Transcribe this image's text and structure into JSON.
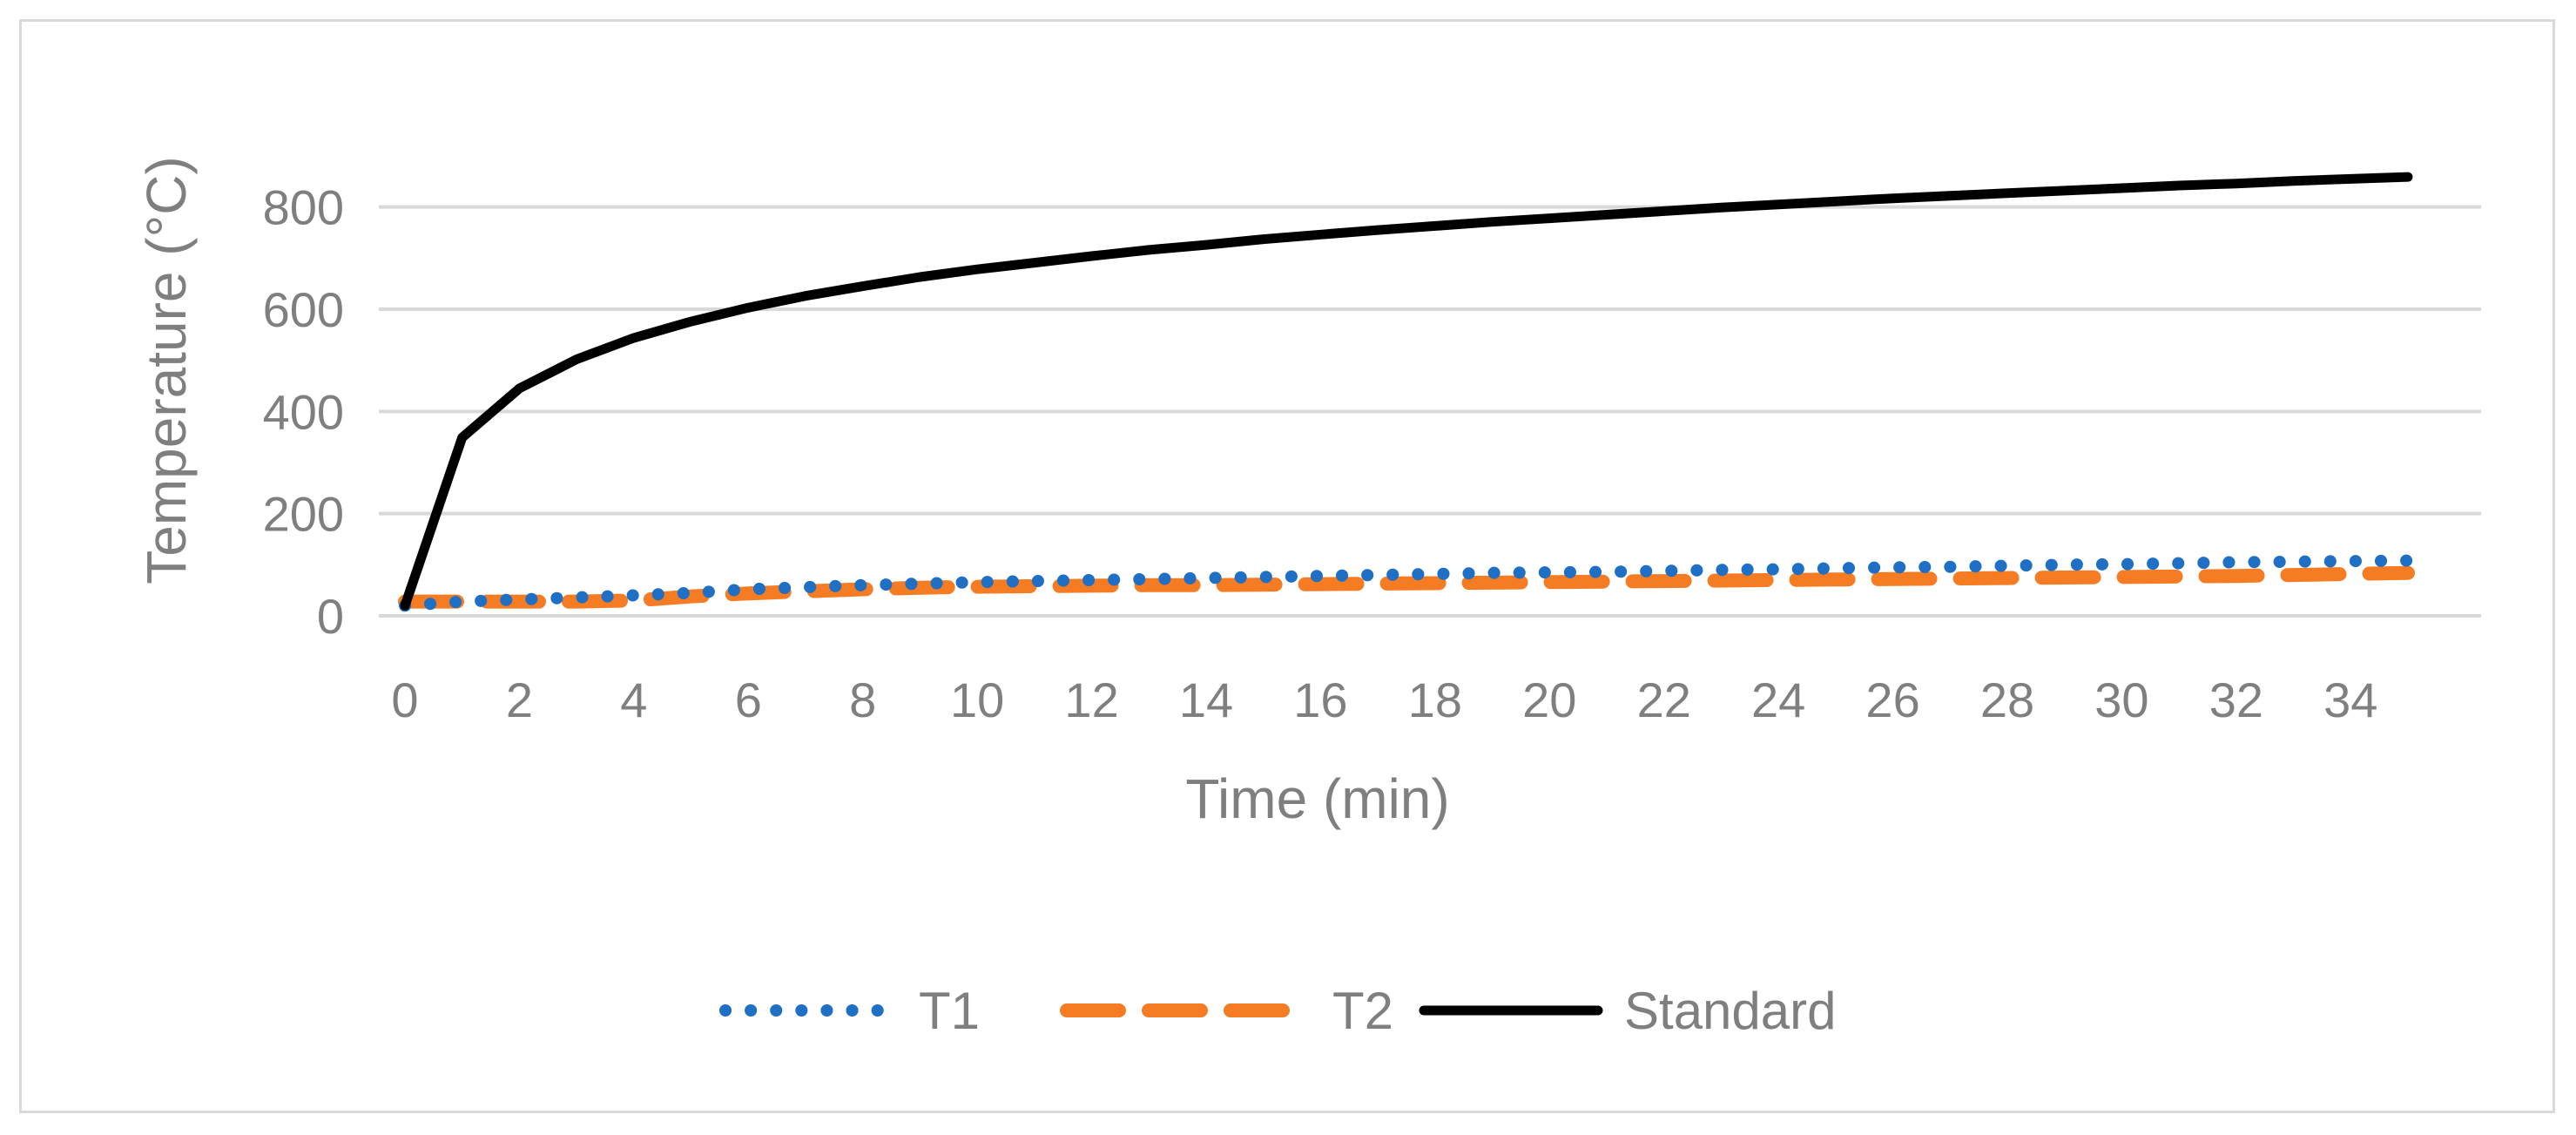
{
  "chart_data": {
    "type": "line",
    "title": "",
    "xlabel": "Time (min)",
    "ylabel": "Temperature (°C)",
    "xlim": [
      0,
      35
    ],
    "ylim": [
      0,
      900
    ],
    "x_ticks": [
      0,
      2,
      4,
      6,
      8,
      10,
      12,
      14,
      16,
      18,
      20,
      22,
      24,
      26,
      28,
      30,
      32,
      34
    ],
    "y_ticks": [
      0,
      200,
      400,
      600,
      800
    ],
    "grid": "horizontal",
    "legend_position": "bottom",
    "x": [
      0,
      1,
      2,
      3,
      4,
      5,
      6,
      7,
      8,
      9,
      10,
      11,
      12,
      13,
      14,
      15,
      16,
      17,
      18,
      19,
      20,
      21,
      22,
      23,
      24,
      25,
      26,
      27,
      28,
      29,
      30,
      31,
      32,
      33,
      34,
      35
    ],
    "series": [
      {
        "name": "T1",
        "color": "#1f6fc4",
        "style": "dotted",
        "values": [
          20,
          28,
          32,
          36,
          40,
          45,
          52,
          56,
          60,
          63,
          66,
          68,
          70,
          72,
          74,
          76,
          78,
          80,
          82,
          84,
          85,
          86,
          88,
          90,
          91,
          93,
          95,
          96,
          98,
          100,
          101,
          103,
          105,
          106,
          107,
          108
        ]
      },
      {
        "name": "T2",
        "color": "#f57c23",
        "style": "dashed",
        "values": [
          28,
          28,
          28,
          28,
          30,
          38,
          44,
          48,
          52,
          55,
          57,
          58,
          59,
          60,
          60,
          61,
          62,
          63,
          64,
          65,
          66,
          67,
          68,
          69,
          70,
          71,
          72,
          73,
          74,
          75,
          76,
          77,
          78,
          80,
          82,
          84
        ]
      },
      {
        "name": "Standard",
        "color": "#000000",
        "style": "solid",
        "values": [
          20,
          349,
          445,
          502,
          544,
          576,
          603,
          626,
          645,
          663,
          678,
          691,
          704,
          716,
          726,
          737,
          746,
          755,
          763,
          771,
          778,
          785,
          792,
          799,
          805,
          811,
          817,
          822,
          827,
          832,
          837,
          842,
          846,
          851,
          855,
          859
        ]
      }
    ]
  }
}
